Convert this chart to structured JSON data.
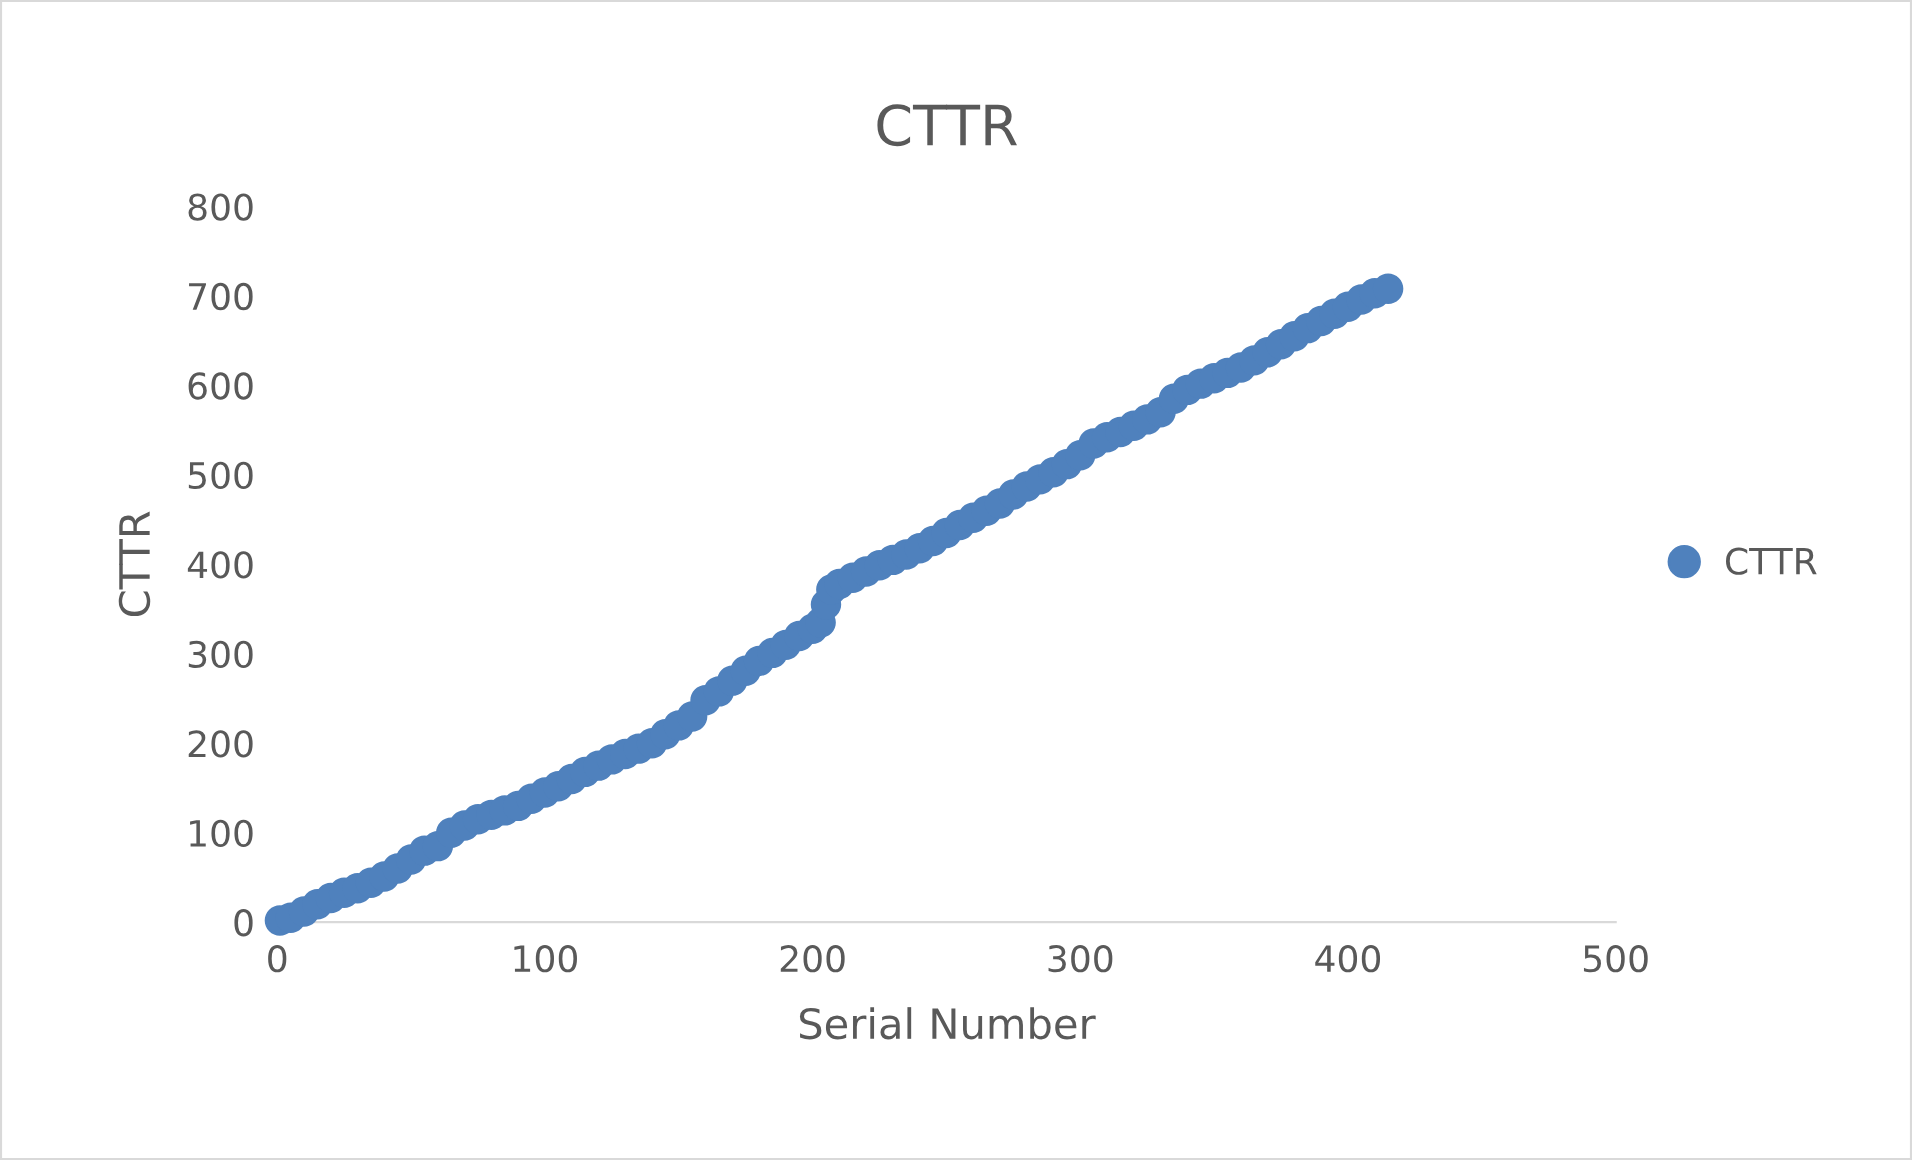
{
  "chart_data": {
    "type": "scatter",
    "title": "CTTR",
    "xlabel": "Serial Number",
    "ylabel": "CTTR",
    "series": [
      {
        "name": "CTTR",
        "color": "#4f81bd",
        "x": [
          1,
          5,
          10,
          15,
          20,
          25,
          30,
          35,
          40,
          45,
          50,
          55,
          60,
          65,
          70,
          75,
          80,
          85,
          90,
          95,
          100,
          105,
          110,
          115,
          120,
          125,
          130,
          135,
          140,
          145,
          150,
          155,
          160,
          165,
          170,
          175,
          180,
          185,
          190,
          195,
          200,
          203,
          205,
          207,
          210,
          215,
          220,
          225,
          230,
          235,
          240,
          245,
          250,
          255,
          260,
          265,
          270,
          275,
          280,
          285,
          290,
          295,
          300,
          305,
          310,
          315,
          320,
          325,
          330,
          335,
          340,
          345,
          350,
          355,
          360,
          365,
          370,
          375,
          380,
          385,
          390,
          395,
          400,
          405,
          410,
          415
        ],
        "values": [
          2,
          5,
          12,
          20,
          27,
          33,
          38,
          44,
          51,
          60,
          70,
          80,
          85,
          100,
          108,
          115,
          120,
          125,
          130,
          138,
          145,
          152,
          160,
          168,
          175,
          182,
          188,
          194,
          200,
          210,
          220,
          230,
          248,
          258,
          270,
          281,
          292,
          301,
          310,
          320,
          328,
          335,
          355,
          372,
          378,
          385,
          392,
          399,
          405,
          411,
          418,
          426,
          435,
          444,
          452,
          460,
          468,
          478,
          487,
          495,
          503,
          512,
          522,
          535,
          542,
          548,
          555,
          562,
          570,
          585,
          595,
          602,
          608,
          614,
          620,
          628,
          637,
          646,
          655,
          664,
          672,
          680,
          688,
          696,
          703,
          708
        ]
      }
    ],
    "xlim": [
      0,
      500
    ],
    "xticks": [
      0,
      100,
      200,
      300,
      400,
      500
    ],
    "ylim": [
      0,
      800
    ],
    "yticks": [
      0,
      100,
      200,
      300,
      400,
      500,
      600,
      700,
      800
    ],
    "grid": false,
    "legend": "right",
    "marker": "circle"
  }
}
